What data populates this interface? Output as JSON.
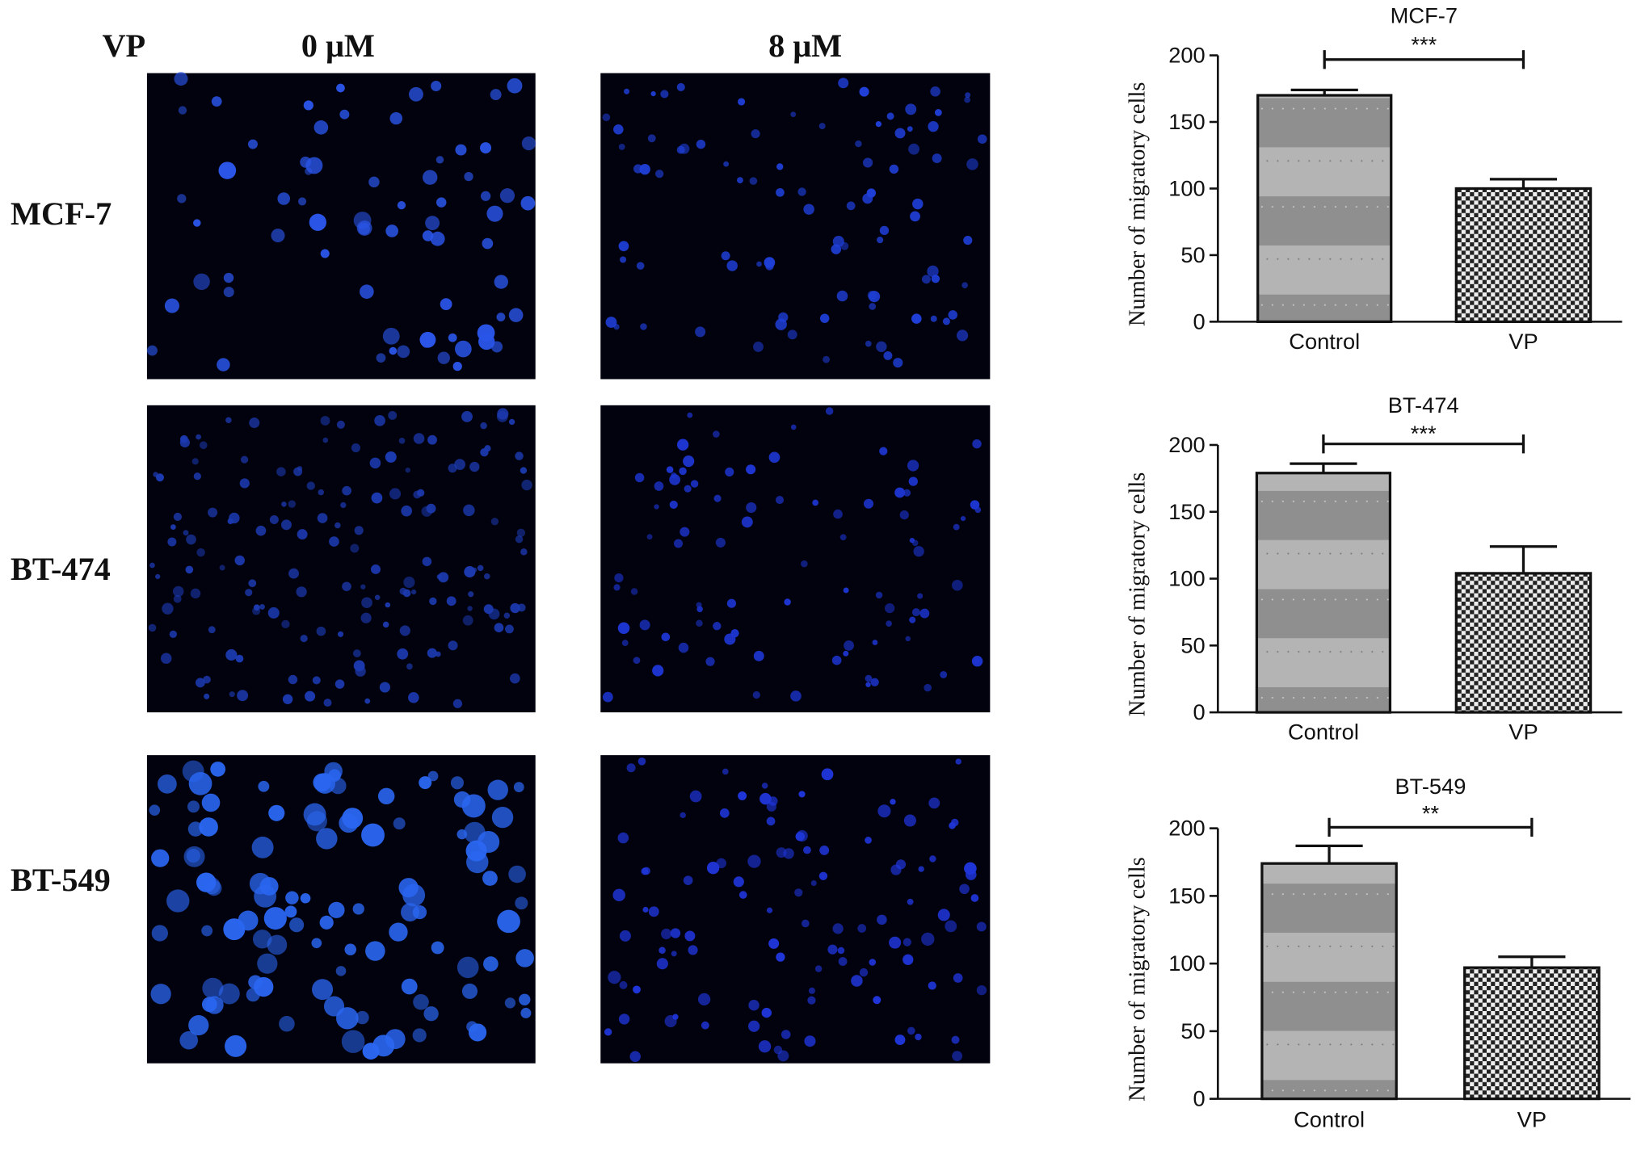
{
  "labels": {
    "treatment": "VP",
    "columns": [
      "0 μM",
      "8 μM"
    ],
    "rows": [
      "MCF-7",
      "BT-474",
      "BT-549"
    ]
  },
  "chart_data": [
    {
      "type": "bar",
      "title": "MCF-7",
      "ylabel": "Number of migratory cells",
      "categories": [
        "Control",
        "VP"
      ],
      "values": [
        170,
        100
      ],
      "errors": [
        4,
        7
      ],
      "ylim": [
        0,
        200
      ],
      "yticks": [
        0,
        50,
        100,
        150,
        200
      ],
      "annotation": "***"
    },
    {
      "type": "bar",
      "title": "BT-474",
      "ylabel": "Number of migratory cells",
      "categories": [
        "Control",
        "VP"
      ],
      "values": [
        179,
        104
      ],
      "errors": [
        7,
        20
      ],
      "ylim": [
        0,
        200
      ],
      "yticks": [
        0,
        50,
        100,
        150,
        200
      ],
      "annotation": "***"
    },
    {
      "type": "bar",
      "title": "BT-549",
      "ylabel": "Number of migratory cells",
      "categories": [
        "Control",
        "VP"
      ],
      "values": [
        174,
        97
      ],
      "errors": [
        13,
        8
      ],
      "ylim": [
        0,
        200
      ],
      "yticks": [
        0,
        50,
        100,
        150,
        200
      ],
      "annotation": "**"
    }
  ]
}
